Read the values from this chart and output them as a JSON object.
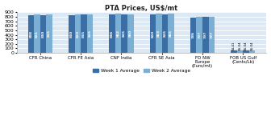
{
  "title": "PTA Prices, US$/mt",
  "categories": [
    "CFR China",
    "CFR FE Asia",
    "CNF India",
    "CFR SE Asia",
    "FD NW\nEurope\n(Euro/mt)",
    "FOB US Gulf\n(Cents/Lb)"
  ],
  "week1": [
    838,
    840,
    846,
    850,
    786,
    54.41
  ],
  "week2": [
    851,
    853,
    862,
    863,
    797,
    55.04
  ],
  "week3": [
    840,
    845,
    855,
    855,
    797,
    55.04
  ],
  "week4": [
    855,
    855,
    860,
    865,
    797,
    55.04
  ],
  "labels1": [
    "838",
    "840",
    "846",
    "850",
    "786",
    "54.41"
  ],
  "labels2": [
    "851",
    "853",
    "862",
    "863",
    "797",
    "55.04"
  ],
  "labels3": [
    "840",
    "845",
    "855",
    "855",
    "797",
    "55.04"
  ],
  "labels4": [
    "855",
    "855",
    "860",
    "865",
    "797",
    "55.04"
  ],
  "color_dark": "#3A6EA5",
  "color_light": "#7BAFD4",
  "ylim": [
    0,
    900
  ],
  "yticks": [
    0,
    100,
    200,
    300,
    400,
    500,
    600,
    700,
    800,
    900
  ],
  "legend_w1": "Week 1 Average",
  "legend_w2": "Week 2 Average",
  "bar_width": 0.15,
  "plot_bg": "#DCE9F5",
  "fig_bg": "#FFFFFF"
}
